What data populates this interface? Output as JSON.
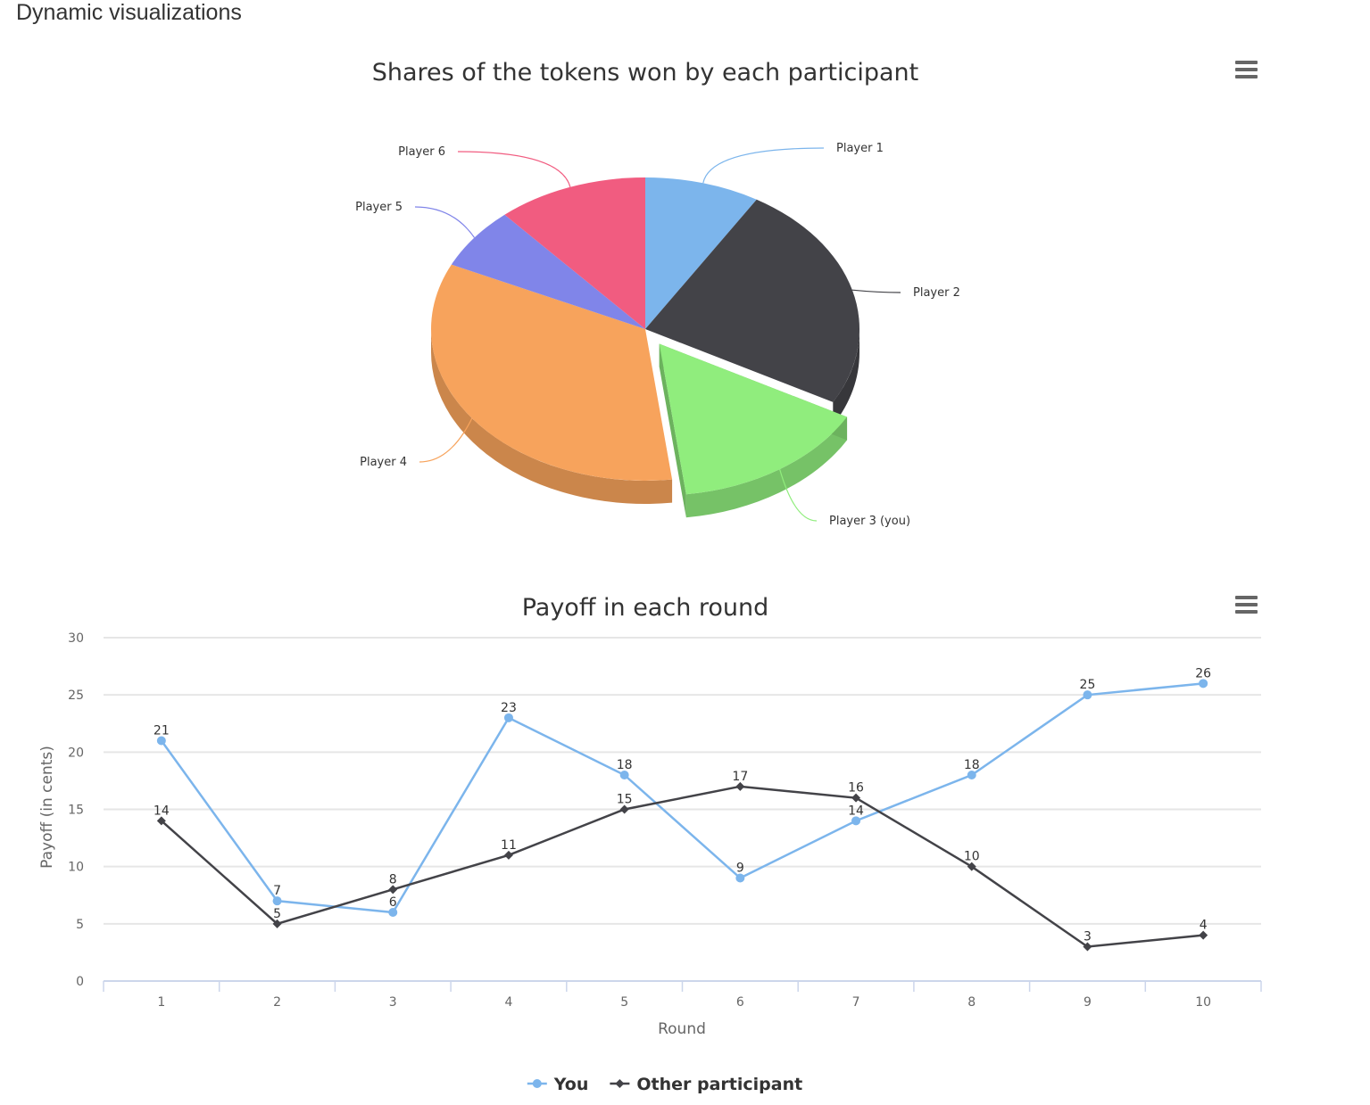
{
  "page": {
    "heading": "Dynamic visualizations"
  },
  "menu_icon": "hamburger-menu-icon",
  "chart_data": [
    {
      "type": "pie",
      "title": "Shares of the tokens won by each participant",
      "categories": [
        "Player 1",
        "Player 2",
        "Player 3 (you)",
        "Player 4",
        "Player 5",
        "Player 6"
      ],
      "values": [
        8.7,
        24.3,
        15.0,
        34.0,
        6.6,
        11.4
      ],
      "colors": [
        "#7cb5ec",
        "#434348",
        "#90ed7d",
        "#f7a35c",
        "#8085e9",
        "#f15c80"
      ],
      "selected": "Player 3 (you)",
      "three_d": true
    },
    {
      "type": "line",
      "title": "Payoff in each round",
      "xlabel": "Round",
      "ylabel": "Payoff (in cents)",
      "categories": [
        "1",
        "2",
        "3",
        "4",
        "5",
        "6",
        "7",
        "8",
        "9",
        "10"
      ],
      "ylim": [
        0,
        30
      ],
      "yticks": [
        0,
        5,
        10,
        15,
        20,
        25,
        30
      ],
      "grid": true,
      "legend": "bottom-center",
      "series": [
        {
          "name": "You",
          "color": "#7cb5ec",
          "marker": "circle",
          "values": [
            21,
            7,
            6,
            23,
            18,
            9,
            14,
            18,
            25,
            26
          ]
        },
        {
          "name": "Other participant",
          "color": "#434348",
          "marker": "diamond",
          "values": [
            14,
            5,
            8,
            11,
            15,
            17,
            16,
            10,
            3,
            4
          ]
        }
      ]
    }
  ]
}
